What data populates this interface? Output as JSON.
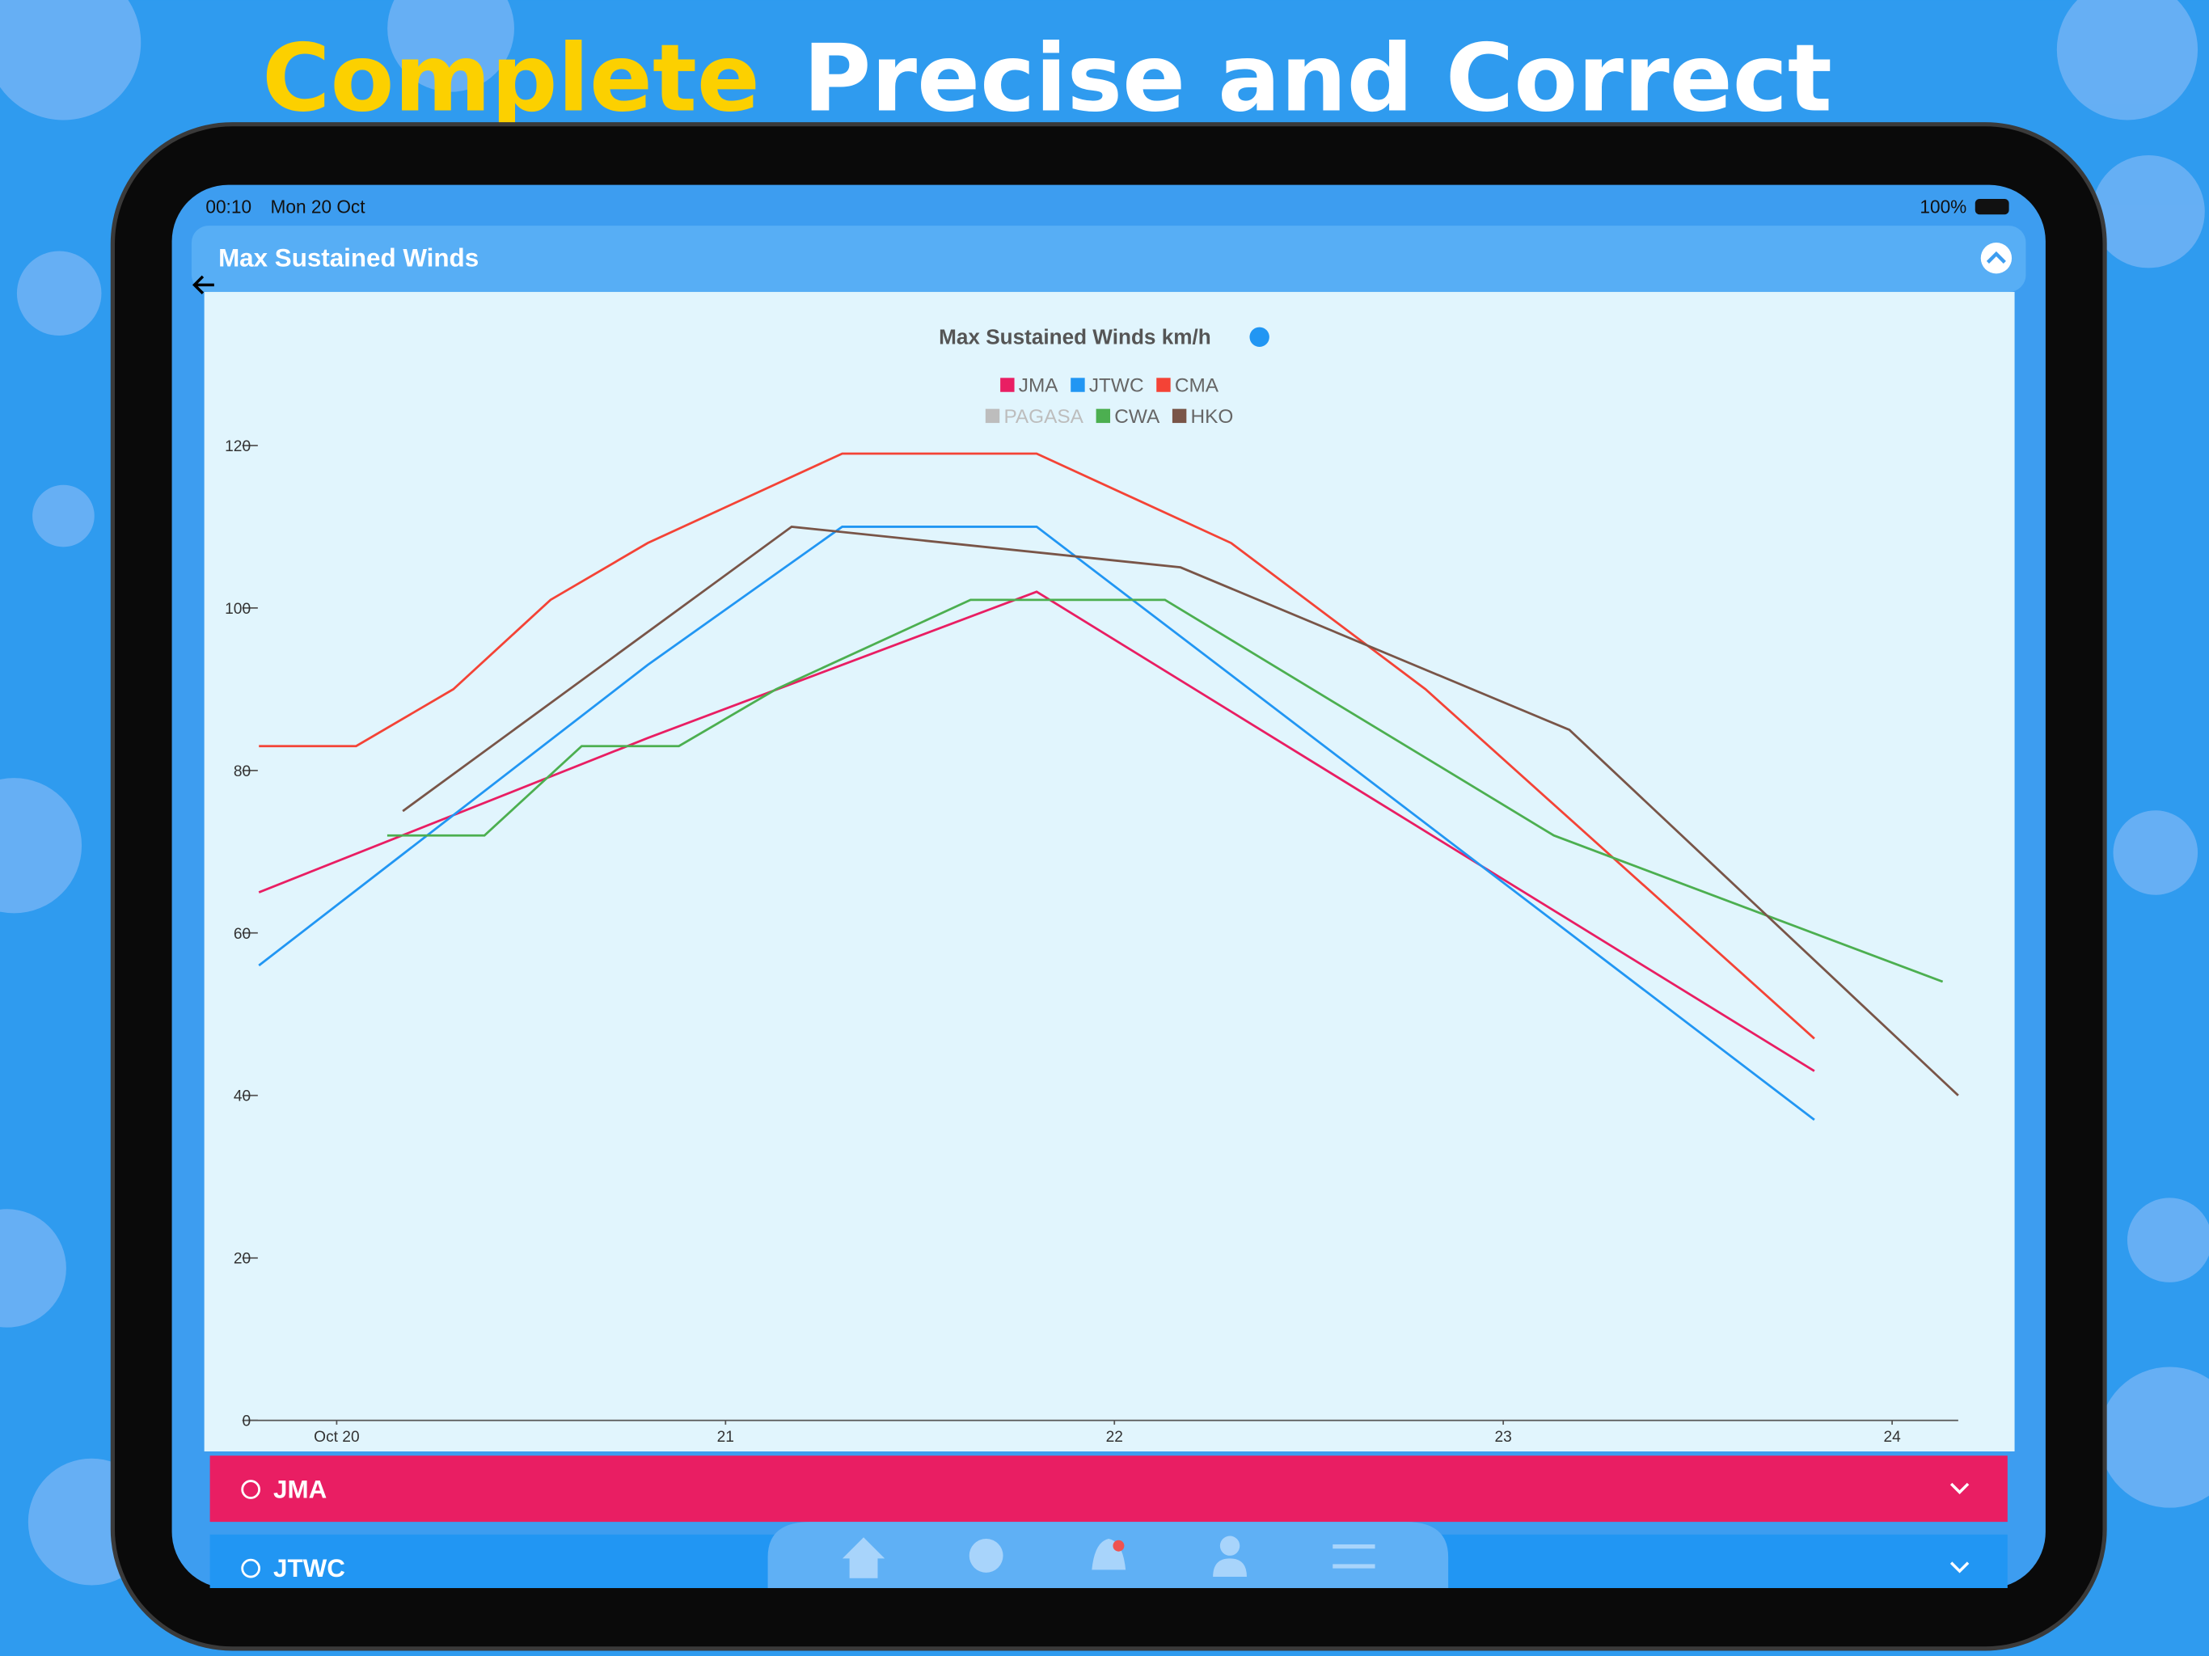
{
  "banner": {
    "highlight": "Complete",
    "rest": "Precise and Correct"
  },
  "status_bar": {
    "time": "00:10",
    "date": "Mon 20 Oct",
    "battery": "100%"
  },
  "header": {
    "title": "Max Sustained Winds"
  },
  "chart_data": {
    "type": "line",
    "title": "Max Sustained Winds km/h",
    "xlim": [
      19.77,
      24.17
    ],
    "ylim": [
      0,
      120
    ],
    "xticks": [
      {
        "value": 20,
        "label": "Oct 20"
      },
      {
        "value": 21,
        "label": "21"
      },
      {
        "value": 22,
        "label": "22"
      },
      {
        "value": 23,
        "label": "23"
      },
      {
        "value": 24,
        "label": "24"
      }
    ],
    "yticks": [
      0,
      20,
      40,
      60,
      80,
      100,
      120
    ],
    "series": [
      {
        "name": "JMA",
        "color": "#e91e63",
        "x": [
          19.8,
          20.8,
          21.8,
          23.8
        ],
        "values": [
          65,
          84,
          102,
          43
        ]
      },
      {
        "name": "JTWC",
        "color": "#2196f3",
        "x": [
          19.8,
          20.8,
          21.3,
          21.8,
          23.8
        ],
        "values": [
          56,
          93,
          110,
          110,
          37
        ]
      },
      {
        "name": "CMA",
        "color": "#f44336",
        "x": [
          19.8,
          20.05,
          20.3,
          20.55,
          20.8,
          21.3,
          21.8,
          22.3,
          22.8,
          23.8
        ],
        "values": [
          83,
          83,
          90,
          101,
          108,
          119,
          119,
          108,
          90,
          47
        ]
      },
      {
        "name": "PAGASA",
        "color": "#bdbdbd",
        "hidden": true,
        "x": [],
        "values": []
      },
      {
        "name": "CWA",
        "color": "#4caf50",
        "x": [
          20.13,
          20.38,
          20.63,
          20.88,
          21.13,
          21.63,
          22.13,
          23.13,
          24.13
        ],
        "values": [
          72,
          72,
          83,
          83,
          90,
          101,
          101,
          72,
          54
        ]
      },
      {
        "name": "HKO",
        "color": "#795548",
        "x": [
          20.17,
          21.17,
          22.17,
          23.17,
          24.17
        ],
        "values": [
          75,
          110,
          105,
          85,
          40
        ]
      }
    ]
  },
  "agencies": [
    "JMA",
    "JTWC"
  ]
}
